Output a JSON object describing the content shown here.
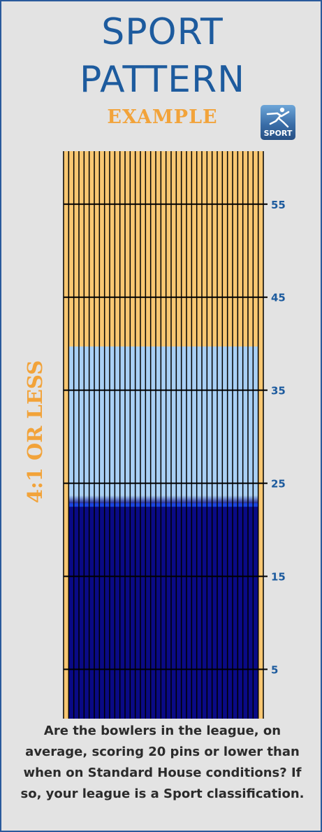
{
  "header": {
    "title_line1": "SPORT",
    "title_line2": "PATTERN",
    "subtitle": "EXAMPLE",
    "logo_text": "SPORT",
    "logo_icon": "runner-icon"
  },
  "side_label": "4:1 OR LESS",
  "lane": {
    "boards": 39,
    "length_ft": 61,
    "ratio_label": "4:1 OR LESS",
    "oil_zones": [
      {
        "name": "dry",
        "from_ft": 40,
        "to_ft": 61,
        "color": "#f8c772"
      },
      {
        "name": "light-oil",
        "from_ft": 24,
        "to_ft": 40,
        "color": "#a9d0f5"
      },
      {
        "name": "heavy-oil",
        "from_ft": 0,
        "to_ft": 23,
        "color": "#0a0a86"
      }
    ],
    "distance_markers": [
      "55",
      "45",
      "35",
      "25",
      "15",
      "5"
    ],
    "colors": {
      "dry": "#f8c772",
      "light": "#a9d0f5",
      "heavy": "#0a0a86",
      "accent": "#1a44e0",
      "label": "#1d5b9e"
    }
  },
  "caption": "Are the bowlers in the league, on average, scoring 20 pins or lower than when on Standard House conditions? If so, your league is a Sport classification."
}
